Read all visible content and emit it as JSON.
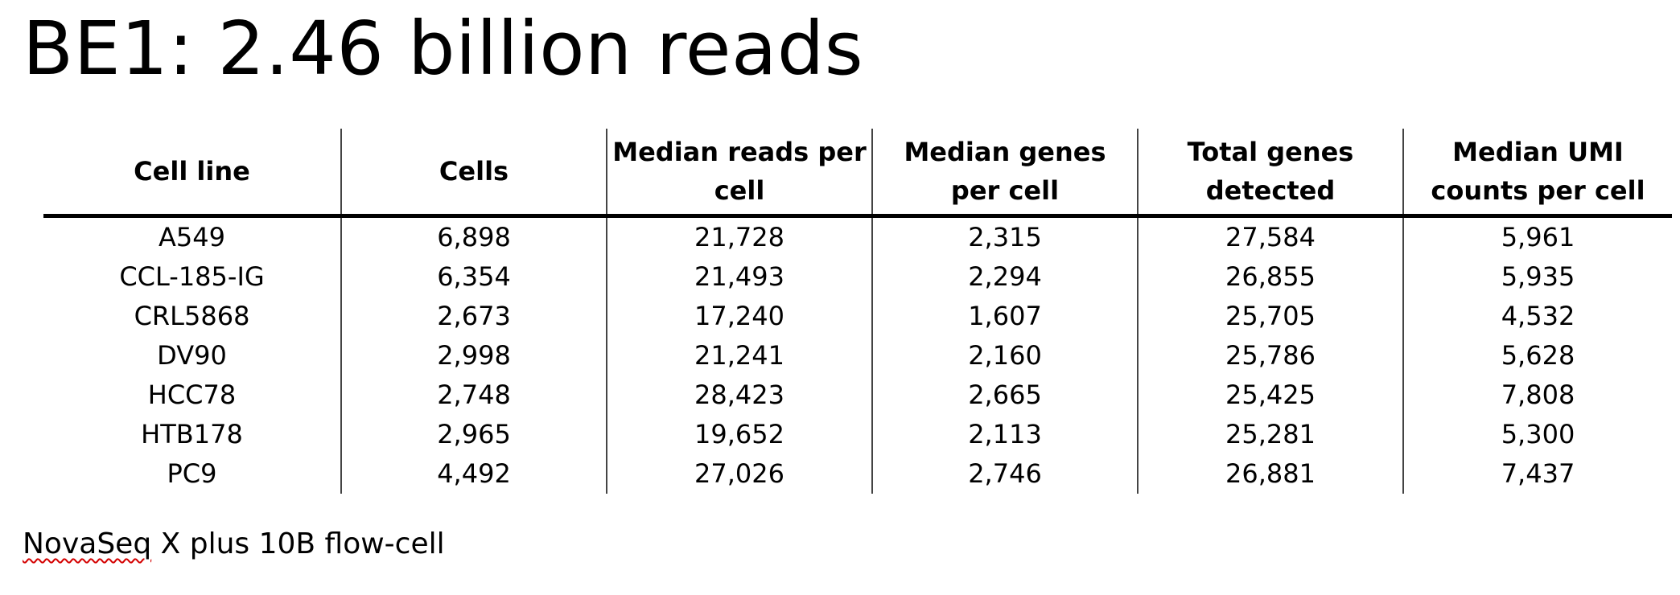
{
  "slide": {
    "title": "BE1: 2.46 billion reads"
  },
  "table": {
    "headers": [
      "Cell line",
      "Cells",
      "Median reads per cell",
      "Median genes per cell",
      "Total genes detected",
      "Median UMI counts per cell"
    ],
    "rows": [
      [
        "A549",
        "6,898",
        "21,728",
        "2,315",
        "27,584",
        "5,961"
      ],
      [
        "CCL-185-IG",
        "6,354",
        "21,493",
        "2,294",
        "26,855",
        "5,935"
      ],
      [
        "CRL5868",
        "2,673",
        "17,240",
        "1,607",
        "25,705",
        "4,532"
      ],
      [
        "DV90",
        "2,998",
        "21,241",
        "2,160",
        "25,786",
        "5,628"
      ],
      [
        "HCC78",
        "2,748",
        "28,423",
        "2,665",
        "25,425",
        "7,808"
      ],
      [
        "HTB178",
        "2,965",
        "19,652",
        "2,113",
        "25,281",
        "5,300"
      ],
      [
        "PC9",
        "4,492",
        "27,026",
        "2,746",
        "26,881",
        "7,437"
      ]
    ]
  },
  "footnote": {
    "word_flagged": "NovaSeq",
    "rest": " X plus 10B flow-cell"
  },
  "colors": {
    "text": "#000000",
    "background": "#ffffff",
    "spellcheck_underline": "#d40000"
  }
}
